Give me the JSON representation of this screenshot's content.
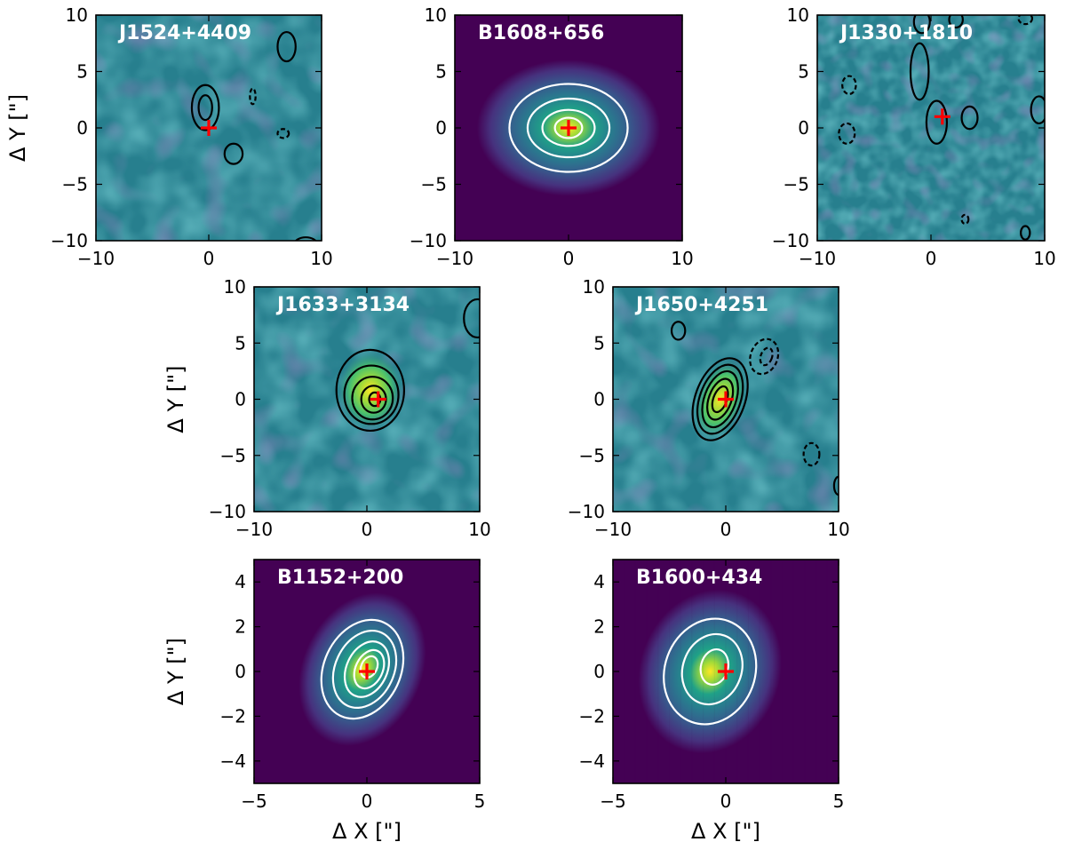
{
  "figure": {
    "colors": {
      "viridis_dark": "#440154",
      "viridis_purple": "#46327e",
      "viridis_blue": "#365c8d",
      "viridis_teal": "#277f8e",
      "viridis_green": "#1fa187",
      "viridis_lightgreen": "#4ac16d",
      "viridis_yellowgreen": "#a0da39",
      "viridis_yellow": "#fde725",
      "contour_black": "#000000",
      "contour_white": "#ffffff",
      "marker_red": "#ff0000"
    }
  },
  "chart_data": [
    {
      "type": "heatmap",
      "title": "J1524+4409",
      "xlim": [
        -10,
        10
      ],
      "ylim": [
        -10,
        10
      ],
      "xticks": [
        -10,
        0,
        10
      ],
      "yticks": [
        -10,
        -5,
        0,
        5,
        10
      ],
      "xlabel": "",
      "ylabel": "Δ Y [\"]",
      "marker": [
        0,
        0
      ],
      "background": "noise",
      "contour_color": "black",
      "contours": [
        {
          "cx": -0.3,
          "cy": 1.8,
          "rx": 1.2,
          "ry": 2.0,
          "rot": 0,
          "dashed": false
        },
        {
          "cx": -0.3,
          "cy": 1.8,
          "rx": 0.6,
          "ry": 1.1,
          "rot": 0,
          "dashed": false
        },
        {
          "cx": 2.2,
          "cy": -2.3,
          "rx": 0.8,
          "ry": 0.9,
          "rot": 0,
          "dashed": false
        },
        {
          "cx": 6.9,
          "cy": 7.2,
          "rx": 0.8,
          "ry": 1.3,
          "rot": 0,
          "dashed": false
        },
        {
          "cx": 3.9,
          "cy": 2.8,
          "rx": 0.25,
          "ry": 0.7,
          "rot": 0,
          "dashed": true
        },
        {
          "cx": 6.6,
          "cy": -0.5,
          "rx": 0.5,
          "ry": 0.4,
          "rot": 0,
          "dashed": true
        },
        {
          "cx": 8.6,
          "cy": -10.3,
          "rx": 1.0,
          "ry": 0.6,
          "rot": 0,
          "dashed": false
        }
      ]
    },
    {
      "type": "heatmap",
      "title": "B1608+656",
      "xlim": [
        -10,
        10
      ],
      "ylim": [
        -10,
        10
      ],
      "xticks": [
        -10,
        0,
        10
      ],
      "yticks": [
        -10,
        -5,
        0,
        5,
        10
      ],
      "xlabel": "",
      "ylabel": "",
      "marker": [
        0,
        0
      ],
      "background": "gaussian",
      "contour_color": "white",
      "contours": [
        {
          "cx": 0,
          "cy": 0,
          "rx": 5.2,
          "ry": 3.9,
          "rot": 0,
          "dashed": false
        },
        {
          "cx": 0,
          "cy": 0,
          "rx": 3.6,
          "ry": 2.6,
          "rot": 0,
          "dashed": false
        },
        {
          "cx": 0,
          "cy": 0,
          "rx": 2.3,
          "ry": 1.6,
          "rot": 0,
          "dashed": false
        },
        {
          "cx": 0,
          "cy": 0,
          "rx": 1.2,
          "ry": 0.9,
          "rot": 0,
          "dashed": false
        }
      ]
    },
    {
      "type": "heatmap",
      "title": "J1330+1810",
      "xlim": [
        -10,
        10
      ],
      "ylim": [
        -10,
        10
      ],
      "xticks": [
        -10,
        0,
        10
      ],
      "yticks": [
        -10,
        -5,
        0,
        5,
        10
      ],
      "xlabel": "",
      "ylabel": "",
      "marker": [
        1,
        1
      ],
      "background": "noise",
      "contour_color": "black",
      "contours": [
        {
          "cx": 0.5,
          "cy": 0.5,
          "rx": 0.9,
          "ry": 1.9,
          "rot": 0,
          "dashed": false
        },
        {
          "cx": 3.4,
          "cy": 0.9,
          "rx": 0.7,
          "ry": 1.0,
          "rot": 0,
          "dashed": false
        },
        {
          "cx": 9.5,
          "cy": 1.6,
          "rx": 0.7,
          "ry": 1.2,
          "rot": 0,
          "dashed": false
        },
        {
          "cx": -1.0,
          "cy": 5.0,
          "rx": 0.8,
          "ry": 2.5,
          "rot": 0,
          "dashed": false
        },
        {
          "cx": -0.8,
          "cy": 9.4,
          "rx": 0.7,
          "ry": 1.0,
          "rot": 0,
          "dashed": false
        },
        {
          "cx": 2.2,
          "cy": 9.6,
          "rx": 0.6,
          "ry": 0.7,
          "rot": 0,
          "dashed": false
        },
        {
          "cx": -7.2,
          "cy": 3.8,
          "rx": 0.6,
          "ry": 0.8,
          "rot": 0,
          "dashed": true
        },
        {
          "cx": -7.4,
          "cy": -0.5,
          "rx": 0.7,
          "ry": 0.9,
          "rot": 0,
          "dashed": true
        },
        {
          "cx": 8.3,
          "cy": 9.7,
          "rx": 0.6,
          "ry": 0.5,
          "rot": 0,
          "dashed": true
        },
        {
          "cx": 3.0,
          "cy": -8.1,
          "rx": 0.3,
          "ry": 0.4,
          "rot": 0,
          "dashed": true
        },
        {
          "cx": 8.3,
          "cy": -9.3,
          "rx": 0.4,
          "ry": 0.6,
          "rot": 0,
          "dashed": false
        }
      ]
    },
    {
      "type": "heatmap",
      "title": "J1633+3134",
      "xlim": [
        -10,
        10
      ],
      "ylim": [
        -10,
        10
      ],
      "xticks": [
        -10,
        0,
        10
      ],
      "yticks": [
        -10,
        -5,
        0,
        5,
        10
      ],
      "xlabel": "",
      "ylabel": "Δ Y [\"]",
      "marker": [
        1,
        0
      ],
      "background": "noise",
      "contour_color": "black",
      "contours": [
        {
          "cx": 0.3,
          "cy": 0.8,
          "rx": 3.0,
          "ry": 3.6,
          "rot": 0,
          "dashed": false
        },
        {
          "cx": 0.4,
          "cy": 0.4,
          "rx": 2.4,
          "ry": 2.6,
          "rot": 0,
          "dashed": false
        },
        {
          "cx": 0.5,
          "cy": 0.1,
          "rx": 1.8,
          "ry": 1.9,
          "rot": 0,
          "dashed": false
        },
        {
          "cx": 0.6,
          "cy": 0.0,
          "rx": 1.1,
          "ry": 1.2,
          "rot": 0,
          "dashed": false
        },
        {
          "cx": 0.7,
          "cy": 0.0,
          "rx": 0.5,
          "ry": 0.6,
          "rot": 0,
          "dashed": false
        },
        {
          "cx": 9.8,
          "cy": 7.2,
          "rx": 1.2,
          "ry": 1.7,
          "rot": 0,
          "dashed": false
        }
      ]
    },
    {
      "type": "heatmap",
      "title": "J1650+4251",
      "xlim": [
        -10,
        10
      ],
      "ylim": [
        -10,
        10
      ],
      "xticks": [
        -10,
        0,
        10
      ],
      "yticks": [
        -10,
        -5,
        0,
        5,
        10
      ],
      "xlabel": "",
      "ylabel": "",
      "marker": [
        0,
        0
      ],
      "background": "noise",
      "contour_color": "black",
      "contours": [
        {
          "cx": -0.5,
          "cy": 0.0,
          "rx": 2.2,
          "ry": 3.8,
          "rot": 20,
          "dashed": false
        },
        {
          "cx": -0.5,
          "cy": 0.0,
          "rx": 1.8,
          "ry": 3.2,
          "rot": 20,
          "dashed": false
        },
        {
          "cx": -0.5,
          "cy": 0.0,
          "rx": 1.4,
          "ry": 2.6,
          "rot": 20,
          "dashed": false
        },
        {
          "cx": -0.5,
          "cy": 0.0,
          "rx": 1.0,
          "ry": 1.9,
          "rot": 20,
          "dashed": false
        },
        {
          "cx": -0.5,
          "cy": 0.0,
          "rx": 0.6,
          "ry": 1.2,
          "rot": 20,
          "dashed": false
        },
        {
          "cx": -4.2,
          "cy": 6.1,
          "rx": 0.6,
          "ry": 0.8,
          "rot": 0,
          "dashed": false
        },
        {
          "cx": 3.4,
          "cy": 3.8,
          "rx": 1.2,
          "ry": 1.6,
          "rot": 20,
          "dashed": true
        },
        {
          "cx": 3.6,
          "cy": 3.8,
          "rx": 0.5,
          "ry": 0.8,
          "rot": 20,
          "dashed": true
        },
        {
          "cx": 7.6,
          "cy": -4.9,
          "rx": 0.7,
          "ry": 1.0,
          "rot": 0,
          "dashed": true
        },
        {
          "cx": 10.0,
          "cy": -7.7,
          "rx": 0.4,
          "ry": 0.8,
          "rot": 0,
          "dashed": false
        }
      ]
    },
    {
      "type": "heatmap",
      "title": "B1152+200",
      "xlim": [
        -5,
        5
      ],
      "ylim": [
        -5,
        5
      ],
      "xticks": [
        -5,
        0,
        5
      ],
      "yticks": [
        -4,
        -2,
        0,
        2,
        4
      ],
      "xlabel": "Δ X [\"]",
      "ylabel": "Δ Y [\"]",
      "marker": [
        0,
        0
      ],
      "background": "gaussian",
      "contour_color": "white",
      "contours": [
        {
          "cx": -0.2,
          "cy": 0.1,
          "rx": 1.7,
          "ry": 2.3,
          "rot": 25,
          "dashed": false
        },
        {
          "cx": -0.1,
          "cy": 0.1,
          "rx": 1.3,
          "ry": 1.8,
          "rot": 25,
          "dashed": false
        },
        {
          "cx": 0.0,
          "cy": 0.1,
          "rx": 0.9,
          "ry": 1.3,
          "rot": 25,
          "dashed": false
        },
        {
          "cx": 0.1,
          "cy": 0.1,
          "rx": 0.6,
          "ry": 0.9,
          "rot": 25,
          "dashed": false
        },
        {
          "cx": 0.1,
          "cy": 0.2,
          "rx": 0.35,
          "ry": 0.5,
          "rot": 25,
          "dashed": false
        }
      ]
    },
    {
      "type": "heatmap",
      "title": "B1600+434",
      "xlim": [
        -5,
        5
      ],
      "ylim": [
        -5,
        5
      ],
      "xticks": [
        -5,
        0,
        5
      ],
      "yticks": [
        -4,
        -2,
        0,
        2,
        4
      ],
      "xlabel": "Δ X [\"]",
      "ylabel": "",
      "marker": [
        0,
        0
      ],
      "background": "pixelated",
      "contour_color": "white",
      "contours": [
        {
          "cx": -0.7,
          "cy": 0.0,
          "rx": 2.0,
          "ry": 2.4,
          "rot": 20,
          "dashed": false
        },
        {
          "cx": -0.6,
          "cy": 0.1,
          "rx": 1.3,
          "ry": 1.6,
          "rot": 20,
          "dashed": false
        },
        {
          "cx": -0.5,
          "cy": 0.2,
          "rx": 0.6,
          "ry": 0.8,
          "rot": 15,
          "dashed": false
        }
      ]
    }
  ]
}
